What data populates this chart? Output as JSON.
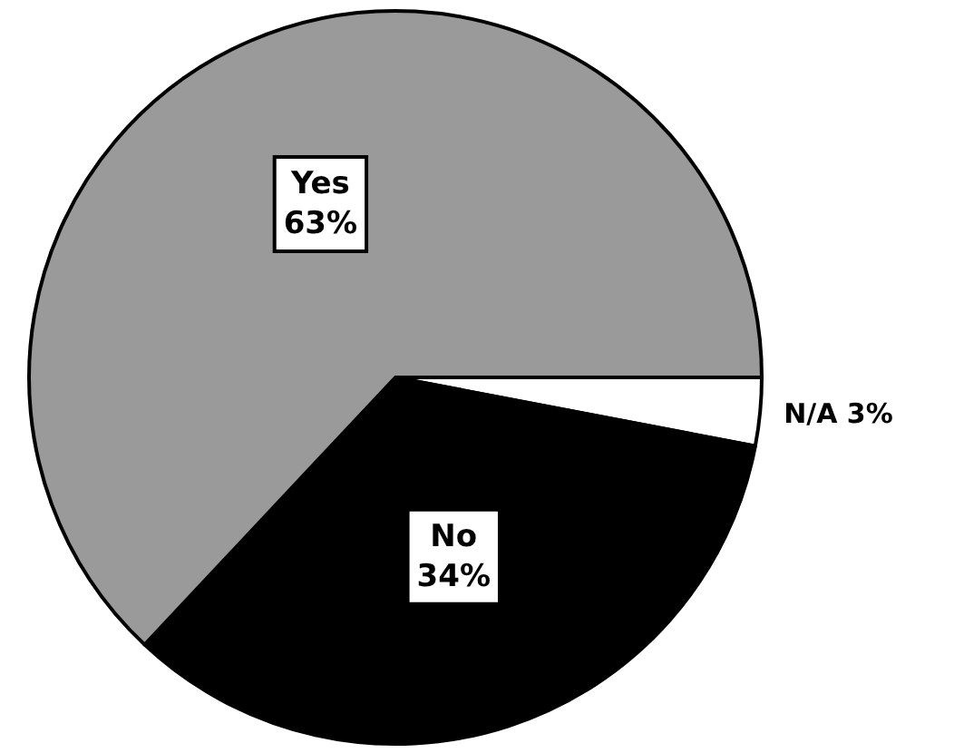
{
  "chart_data": {
    "type": "pie",
    "categories": [
      "N/A",
      "No",
      "Yes"
    ],
    "values": [
      3,
      34,
      63
    ],
    "value_labels": [
      "3%",
      "34%",
      "63%"
    ],
    "colors": [
      "#ffffff",
      "#000000",
      "#9a9a9a"
    ],
    "legend": false
  }
}
